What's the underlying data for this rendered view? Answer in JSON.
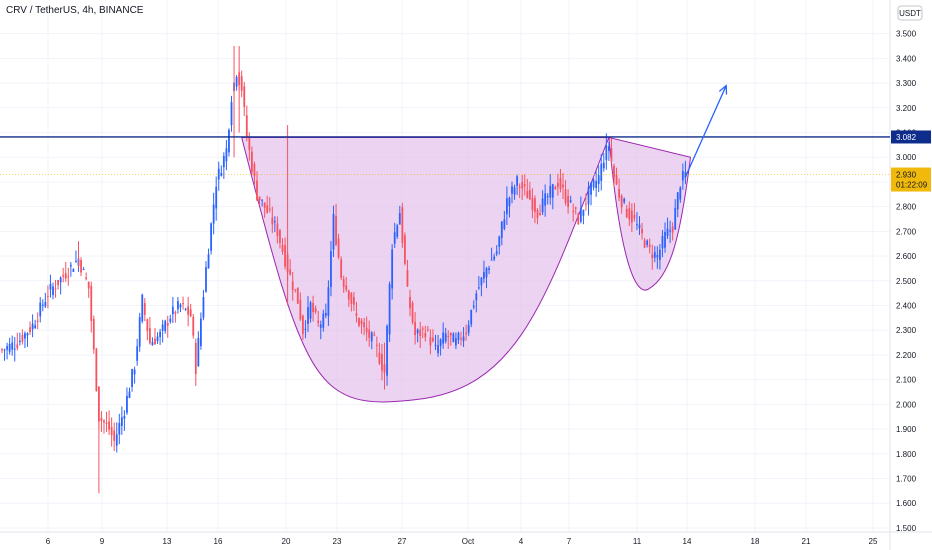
{
  "header": {
    "title": "CRV / TetherUS, 4h, BINANCE",
    "currency_badge": "USDT"
  },
  "colors": {
    "up": "#2962ff",
    "down": "#f7525f",
    "cup_fill": "#e4c4ec",
    "cup_stroke": "#9c27b0",
    "resistance": "#0d2c8c",
    "arrow": "#2962ff",
    "price_tag": "#f0b90b",
    "grid": "#f0f3fa"
  },
  "chart_data": {
    "type": "candlestick",
    "title": "CRV / TetherUS, 4h, BINANCE",
    "ylim": [
      1.45,
      3.65
    ],
    "y_ticks": [
      "3.500",
      "3.400",
      "3.300",
      "3.200",
      "3.100",
      "3.000",
      "2.900",
      "2.800",
      "2.700",
      "2.600",
      "2.500",
      "2.400",
      "2.300",
      "2.200",
      "2.100",
      "2.000",
      "1.900",
      "1.800",
      "1.700",
      "1.600",
      "1.500"
    ],
    "x_ticks": [
      "6",
      "9",
      "13",
      "16",
      "20",
      "23",
      "27",
      "Oct",
      "4",
      "7",
      "11",
      "14",
      "18",
      "21",
      "25"
    ],
    "resistance": {
      "label": "3.082",
      "value": 3.082
    },
    "current_price": {
      "label": "2.930",
      "value": 2.93,
      "countdown": "01:22:09"
    },
    "price_path": [
      [
        0,
        2.22
      ],
      [
        6,
        2.25
      ],
      [
        12,
        2.32
      ],
      [
        18,
        2.45
      ],
      [
        24,
        2.52
      ],
      [
        30,
        2.59
      ],
      [
        34,
        2.47
      ],
      [
        38,
        1.95
      ],
      [
        42,
        1.9
      ],
      [
        44,
        1.85
      ],
      [
        48,
        1.98
      ],
      [
        52,
        2.16
      ],
      [
        55,
        2.42
      ],
      [
        58,
        2.25
      ],
      [
        62,
        2.28
      ],
      [
        66,
        2.36
      ],
      [
        70,
        2.4
      ],
      [
        74,
        2.36
      ],
      [
        76,
        2.15
      ],
      [
        80,
        2.55
      ],
      [
        84,
        2.9
      ],
      [
        88,
        3.03
      ],
      [
        90,
        3.25
      ],
      [
        92,
        3.35
      ],
      [
        94,
        3.28
      ],
      [
        96,
        3.08
      ],
      [
        100,
        2.85
      ],
      [
        104,
        2.78
      ],
      [
        108,
        2.7
      ],
      [
        112,
        2.55
      ],
      [
        116,
        2.42
      ],
      [
        118,
        2.3
      ],
      [
        121,
        2.4
      ],
      [
        124,
        2.32
      ],
      [
        127,
        2.35
      ],
      [
        130,
        2.75
      ],
      [
        133,
        2.52
      ],
      [
        136,
        2.45
      ],
      [
        139,
        2.35
      ],
      [
        142,
        2.3
      ],
      [
        146,
        2.25
      ],
      [
        150,
        2.13
      ],
      [
        153,
        2.65
      ],
      [
        156,
        2.78
      ],
      [
        159,
        2.45
      ],
      [
        162,
        2.28
      ],
      [
        166,
        2.3
      ],
      [
        170,
        2.22
      ],
      [
        174,
        2.28
      ],
      [
        178,
        2.25
      ],
      [
        182,
        2.3
      ],
      [
        186,
        2.45
      ],
      [
        190,
        2.55
      ],
      [
        194,
        2.62
      ],
      [
        198,
        2.82
      ],
      [
        202,
        2.9
      ],
      [
        206,
        2.85
      ],
      [
        210,
        2.78
      ],
      [
        214,
        2.84
      ],
      [
        218,
        2.9
      ],
      [
        222,
        2.82
      ],
      [
        226,
        2.75
      ],
      [
        230,
        2.85
      ],
      [
        234,
        2.92
      ],
      [
        236,
        3.0
      ],
      [
        238,
        3.05
      ],
      [
        240,
        2.92
      ],
      [
        242,
        2.85
      ],
      [
        245,
        2.78
      ],
      [
        248,
        2.74
      ],
      [
        251,
        2.68
      ],
      [
        254,
        2.62
      ],
      [
        257,
        2.6
      ],
      [
        260,
        2.68
      ],
      [
        263,
        2.72
      ],
      [
        266,
        2.9
      ],
      [
        268,
        2.93
      ]
    ],
    "pattern": {
      "name": "cup and handle",
      "cup": {
        "left": [
          94,
          3.08
        ],
        "bottom": [
          163,
          2.02
        ],
        "right": [
          238,
          3.08
        ]
      },
      "handle": {
        "left": [
          238,
          3.08
        ],
        "bottom": [
          254,
          2.47
        ],
        "right": [
          270,
          3.0
        ]
      },
      "breakout_arrow": {
        "from": [
          268,
          2.92
        ],
        "to": [
          284,
          3.29
        ]
      }
    }
  }
}
